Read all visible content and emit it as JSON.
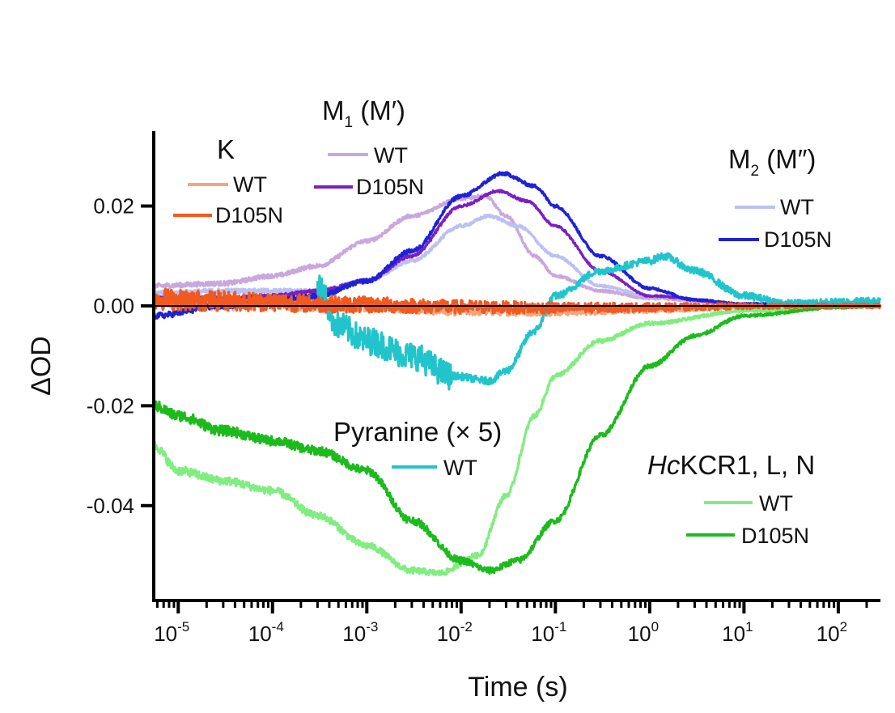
{
  "chart_data": {
    "type": "line",
    "title": "",
    "xlabel": "Time (s)",
    "ylabel": "ΔOD",
    "xscale": "log",
    "xlim": [
      5.5e-06,
      280
    ],
    "ylim": [
      -0.059,
      0.035
    ],
    "x_ticks": [
      {
        "base": "10",
        "exp": "-5"
      },
      {
        "base": "10",
        "exp": "-4"
      },
      {
        "base": "10",
        "exp": "-3"
      },
      {
        "base": "10",
        "exp": "-2"
      },
      {
        "base": "10",
        "exp": "-1"
      },
      {
        "base": "10",
        "exp": "0"
      },
      {
        "base": "10",
        "exp": "1"
      },
      {
        "base": "10",
        "exp": "2"
      }
    ],
    "y_ticks": [
      {
        "value": 0.02,
        "label": "0.02"
      },
      {
        "value": 0.0,
        "label": "0.00"
      },
      {
        "value": -0.02,
        "label": "-0.02"
      },
      {
        "value": -0.04,
        "label": "-0.04"
      }
    ],
    "legend_groups": [
      {
        "id": "K",
        "title": "K",
        "entries": [
          "WT",
          "D105N"
        ],
        "placement": "top-left"
      },
      {
        "id": "M1",
        "title_main": "M",
        "title_sub": "1",
        "title_rest": " (M′)",
        "entries": [
          "WT",
          "D105N"
        ],
        "placement": "top-center"
      },
      {
        "id": "M2",
        "title_main": "M",
        "title_sub": "2",
        "title_rest": " (M″)",
        "entries": [
          "WT",
          "D105N"
        ],
        "placement": "top-right"
      },
      {
        "id": "Pyr",
        "title": "Pyranine (× 5)",
        "entries": [
          "WT"
        ],
        "placement": "center"
      },
      {
        "id": "Hc",
        "title_italic": "Hc",
        "title_rest": "KCR1, L, N",
        "entries": [
          "WT",
          "D105N"
        ],
        "placement": "bottom-right"
      }
    ],
    "series": [
      {
        "name": "K WT",
        "group": "K",
        "color": "#F7A57E",
        "noise": 0.0015,
        "points": [
          [
            5.5e-06,
            0.001
          ],
          [
            1e-05,
            0.0008
          ],
          [
            3e-05,
            0.0005
          ],
          [
            0.0001,
            0.0004
          ],
          [
            0.0003,
            0.0002
          ],
          [
            0.001,
            0
          ],
          [
            0.01,
            -0.001
          ],
          [
            0.1,
            -0.0012
          ],
          [
            1,
            -0.0008
          ],
          [
            10,
            -0.0002
          ],
          [
            280,
            0
          ]
        ]
      },
      {
        "name": "K D105N",
        "group": "K",
        "color": "#F05A1E",
        "noise": 0.0022,
        "points": [
          [
            5.5e-06,
            0.0015
          ],
          [
            1e-05,
            0.0012
          ],
          [
            3e-05,
            0.001
          ],
          [
            0.0001,
            0.0008
          ],
          [
            0.0003,
            0.0004
          ],
          [
            0.001,
            0.0002
          ],
          [
            0.01,
            -0.0002
          ],
          [
            0.1,
            -0.0004
          ],
          [
            1,
            -0.0003
          ],
          [
            10,
            -0.0001
          ],
          [
            280,
            0
          ]
        ]
      },
      {
        "name": "M1 WT",
        "group": "M1",
        "color": "#C9A7DE",
        "noise": 0.0005,
        "points": [
          [
            5.5e-06,
            0.004
          ],
          [
            3e-05,
            0.0045
          ],
          [
            0.0001,
            0.006
          ],
          [
            0.0003,
            0.008
          ],
          [
            0.001,
            0.013
          ],
          [
            0.003,
            0.018
          ],
          [
            0.01,
            0.0215
          ],
          [
            0.018,
            0.022
          ],
          [
            0.03,
            0.018
          ],
          [
            0.06,
            0.01
          ],
          [
            0.1,
            0.006
          ],
          [
            0.3,
            0.003
          ],
          [
            1,
            0.0015
          ],
          [
            10,
            0.0003
          ],
          [
            280,
            0
          ]
        ]
      },
      {
        "name": "M1 D105N",
        "group": "M1",
        "color": "#7B1FC4",
        "noise": 0.0004,
        "points": [
          [
            5.5e-06,
            0.0015
          ],
          [
            3e-05,
            0.0015
          ],
          [
            0.0001,
            0.002
          ],
          [
            0.0003,
            0.003
          ],
          [
            0.001,
            0.005
          ],
          [
            0.003,
            0.01
          ],
          [
            0.01,
            0.02
          ],
          [
            0.025,
            0.023
          ],
          [
            0.05,
            0.021
          ],
          [
            0.1,
            0.016
          ],
          [
            0.3,
            0.007
          ],
          [
            1,
            0.002
          ],
          [
            10,
            0.0004
          ],
          [
            280,
            0
          ]
        ]
      },
      {
        "name": "M2 WT",
        "group": "M2",
        "color": "#BCC0F2",
        "noise": 0.0005,
        "points": [
          [
            5.5e-06,
            0.0025
          ],
          [
            3e-05,
            0.003
          ],
          [
            0.0001,
            0.003
          ],
          [
            0.0003,
            0.003
          ],
          [
            0.001,
            0.005
          ],
          [
            0.003,
            0.009
          ],
          [
            0.01,
            0.016
          ],
          [
            0.02,
            0.018
          ],
          [
            0.04,
            0.016
          ],
          [
            0.1,
            0.01
          ],
          [
            0.3,
            0.004
          ],
          [
            1,
            0.002
          ],
          [
            10,
            0.0003
          ],
          [
            280,
            0
          ]
        ]
      },
      {
        "name": "M2 D105N",
        "group": "M2",
        "color": "#1E22D6",
        "noise": 0.0006,
        "points": [
          [
            5.5e-06,
            -0.002
          ],
          [
            3e-05,
            0
          ],
          [
            0.0001,
            0.001
          ],
          [
            0.0003,
            0.002
          ],
          [
            0.001,
            0.005
          ],
          [
            0.003,
            0.011
          ],
          [
            0.01,
            0.022
          ],
          [
            0.028,
            0.0265
          ],
          [
            0.06,
            0.024
          ],
          [
            0.1,
            0.02
          ],
          [
            0.3,
            0.01
          ],
          [
            1,
            0.0035
          ],
          [
            3,
            0.0012
          ],
          [
            10,
            0.0004
          ],
          [
            280,
            0
          ]
        ]
      },
      {
        "name": "Pyranine WT",
        "group": "Pyr",
        "color": "#22C4CC",
        "noise": 0.0028,
        "noise_until": 0.008,
        "points": [
          [
            0.0003,
            0.004
          ],
          [
            0.0005,
            -0.004
          ],
          [
            0.001,
            -0.007
          ],
          [
            0.003,
            -0.01
          ],
          [
            0.008,
            -0.014
          ],
          [
            0.02,
            -0.015
          ],
          [
            0.03,
            -0.013
          ],
          [
            0.06,
            -0.005
          ],
          [
            0.1,
            0.002
          ],
          [
            0.3,
            0.007
          ],
          [
            1,
            0.009
          ],
          [
            1.4,
            0.01
          ],
          [
            3,
            0.007
          ],
          [
            10,
            0.002
          ],
          [
            30,
            0.0005
          ],
          [
            280,
            0.001
          ]
        ]
      },
      {
        "name": "HcKCR1 WT",
        "group": "Hc",
        "color": "#80ED80",
        "noise": 0.0009,
        "points": [
          [
            5.5e-06,
            -0.028
          ],
          [
            1e-05,
            -0.033
          ],
          [
            3e-05,
            -0.035
          ],
          [
            0.0001,
            -0.037
          ],
          [
            0.0003,
            -0.042
          ],
          [
            0.001,
            -0.048
          ],
          [
            0.003,
            -0.053
          ],
          [
            0.006,
            -0.0535
          ],
          [
            0.015,
            -0.05
          ],
          [
            0.03,
            -0.038
          ],
          [
            0.06,
            -0.022
          ],
          [
            0.1,
            -0.014
          ],
          [
            0.3,
            -0.007
          ],
          [
            1,
            -0.0035
          ],
          [
            10,
            -0.001
          ],
          [
            100,
            -0.0002
          ],
          [
            280,
            0
          ]
        ]
      },
      {
        "name": "HcKCR1 D105N",
        "group": "Hc",
        "color": "#1CBB1C",
        "noise": 0.0011,
        "points": [
          [
            5.5e-06,
            -0.02
          ],
          [
            1e-05,
            -0.022
          ],
          [
            3e-05,
            -0.025
          ],
          [
            0.0001,
            -0.027
          ],
          [
            0.0003,
            -0.029
          ],
          [
            0.001,
            -0.033
          ],
          [
            0.003,
            -0.043
          ],
          [
            0.01,
            -0.051
          ],
          [
            0.02,
            -0.053
          ],
          [
            0.04,
            -0.051
          ],
          [
            0.1,
            -0.043
          ],
          [
            0.3,
            -0.026
          ],
          [
            1,
            -0.012
          ],
          [
            3,
            -0.006
          ],
          [
            10,
            -0.002
          ],
          [
            100,
            -0.0003
          ],
          [
            280,
            0
          ]
        ]
      }
    ]
  }
}
